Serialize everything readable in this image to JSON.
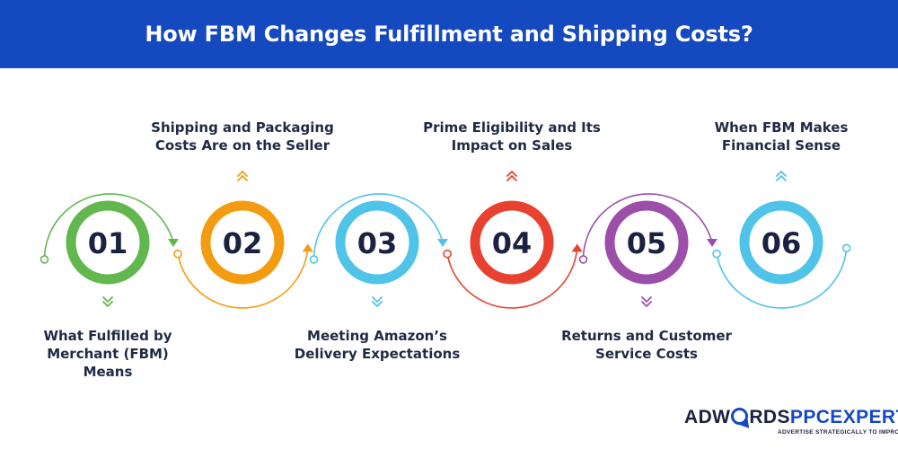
{
  "title": "How FBM Changes Fulfillment and Shipping Costs?",
  "steps": [
    {
      "number": "01",
      "label_lines": [
        "What Fulfilled by",
        "Merchant (FBM)",
        "Means"
      ],
      "position": "bottom",
      "color": "#62b84f"
    },
    {
      "number": "02",
      "label_lines": [
        "Shipping and Packaging",
        "Costs Are on the Seller"
      ],
      "position": "top",
      "color": "#f39c12"
    },
    {
      "number": "03",
      "label_lines": [
        "Meeting Amazon’s",
        "Delivery Expectations"
      ],
      "position": "bottom",
      "color": "#4fc3e8"
    },
    {
      "number": "04",
      "label_lines": [
        "Prime Eligibility and Its",
        "Impact on Sales"
      ],
      "position": "top",
      "color": "#e8412f"
    },
    {
      "number": "05",
      "label_lines": [
        "Returns and Customer",
        "Service Costs"
      ],
      "position": "bottom",
      "color": "#9b4fa8"
    },
    {
      "number": "06",
      "label_lines": [
        "When FBM Makes",
        "Financial Sense"
      ],
      "position": "top",
      "color": "#4fc3e8"
    }
  ],
  "logo": {
    "brand_part1": "ADW",
    "brand_part2": "RDS",
    "brand_part3": "PPCEXPERT",
    "tagline": "ADVERTISE STRATEGICALLY TO IMPROVE ROI"
  }
}
